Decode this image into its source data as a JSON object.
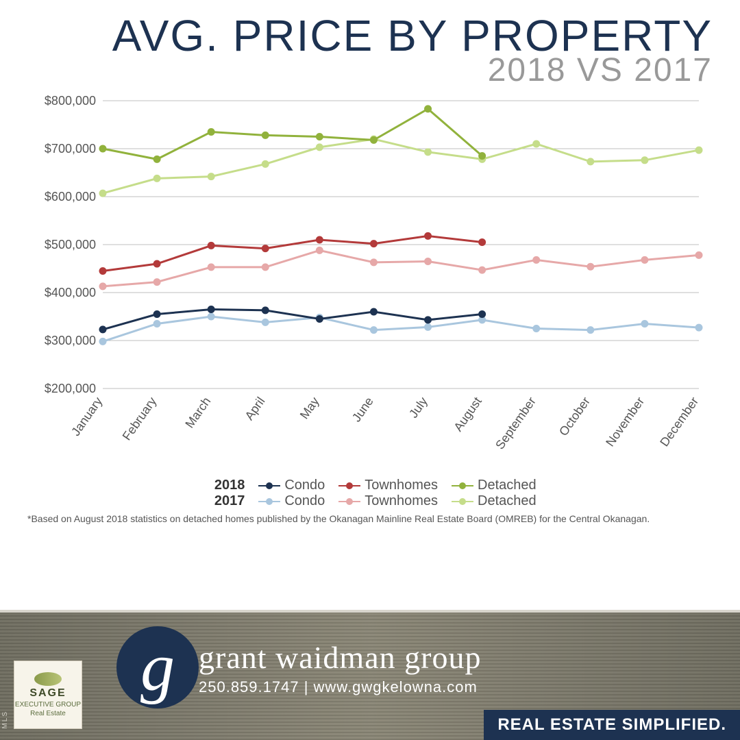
{
  "title": {
    "main": "AVG. PRICE BY PROPERTY",
    "sub": "2018 VS 2017"
  },
  "chart": {
    "type": "line",
    "x_labels": [
      "January",
      "February",
      "March",
      "April",
      "May",
      "June",
      "July",
      "August",
      "September",
      "October",
      "November",
      "December"
    ],
    "x_label_fontsize": 18,
    "x_label_rotation_deg": -55,
    "x_label_color": "#555555",
    "ylim": [
      200000,
      800000
    ],
    "ytick_step": 100000,
    "ytick_prefix": "$",
    "ytick_fontsize": 18,
    "ytick_color": "#555555",
    "grid_color": "#bfbfbf",
    "background_color": "#ffffff",
    "marker_radius": 5,
    "line_width": 3,
    "series": [
      {
        "year": "2018",
        "name": "Condo",
        "color": "#1d3251",
        "values": [
          323000,
          355000,
          365000,
          363000,
          345000,
          360000,
          343000,
          355000,
          null,
          null,
          null,
          null
        ]
      },
      {
        "year": "2018",
        "name": "Townhomes",
        "color": "#b33a3a",
        "values": [
          445000,
          460000,
          498000,
          492000,
          510000,
          502000,
          518000,
          505000,
          null,
          null,
          null,
          null
        ]
      },
      {
        "year": "2018",
        "name": "Detached",
        "color": "#91b23c",
        "values": [
          700000,
          678000,
          735000,
          728000,
          725000,
          718000,
          783000,
          685000,
          null,
          null,
          null,
          null
        ]
      },
      {
        "year": "2017",
        "name": "Condo",
        "color": "#a9c6de",
        "values": [
          298000,
          335000,
          350000,
          338000,
          348000,
          322000,
          328000,
          343000,
          325000,
          322000,
          335000,
          327000
        ]
      },
      {
        "year": "2017",
        "name": "Townhomes",
        "color": "#e6a8a8",
        "values": [
          413000,
          422000,
          453000,
          453000,
          488000,
          463000,
          465000,
          447000,
          468000,
          454000,
          468000,
          478000
        ]
      },
      {
        "year": "2017",
        "name": "Detached",
        "color": "#c5dd8a",
        "values": [
          607000,
          638000,
          642000,
          668000,
          703000,
          720000,
          693000,
          678000,
          710000,
          673000,
          676000,
          697000
        ]
      }
    ]
  },
  "legend": {
    "years": [
      "2018",
      "2017"
    ],
    "labels": [
      "Condo",
      "Townhomes",
      "Detached"
    ],
    "fontsize": 20,
    "label_color": "#555555"
  },
  "footnote": "*Based on August 2018 statistics on detached homes published by the Okanagan Mainline Real Estate Board (OMREB) for the Central Okanagan.",
  "footer": {
    "brand_first": "grant",
    "brand_rest": "waidman group",
    "phone": "250.859.1747",
    "separator": " | ",
    "website": "www.gwgkelowna.com",
    "tagline": "REAL ESTATE SIMPLIFIED.",
    "sage_name": "SAGE",
    "sage_sub1": "EXECUTIVE GROUP",
    "sage_sub2": "Real Estate",
    "mls": "MLS"
  },
  "colors": {
    "title": "#1d3251",
    "subtitle": "#999999",
    "footer_bg": "#7d7a6c",
    "tagline_bg": "#1d3251"
  }
}
